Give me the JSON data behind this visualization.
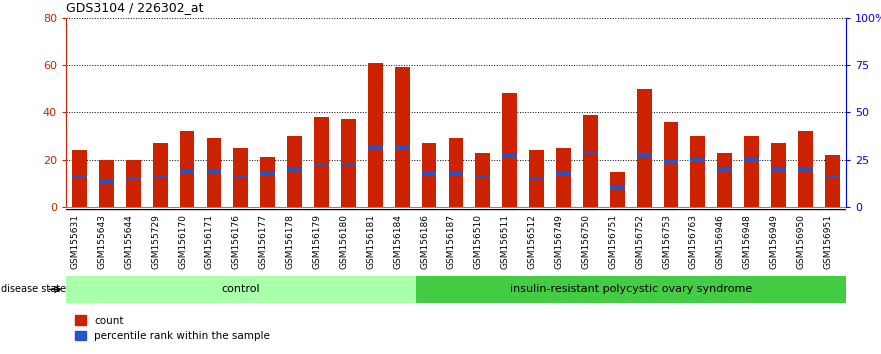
{
  "title": "GDS3104 / 226302_at",
  "samples": [
    "GSM155631",
    "GSM155643",
    "GSM155644",
    "GSM155729",
    "GSM156170",
    "GSM156171",
    "GSM156176",
    "GSM156177",
    "GSM156178",
    "GSM156179",
    "GSM156180",
    "GSM156181",
    "GSM156184",
    "GSM156186",
    "GSM156187",
    "GSM156510",
    "GSM156511",
    "GSM156512",
    "GSM156749",
    "GSM156750",
    "GSM156751",
    "GSM156752",
    "GSM156753",
    "GSM156763",
    "GSM156946",
    "GSM156948",
    "GSM156949",
    "GSM156950",
    "GSM156951"
  ],
  "count_values": [
    24,
    20,
    20,
    27,
    32,
    29,
    25,
    21,
    30,
    38,
    37,
    61,
    59,
    27,
    29,
    23,
    48,
    24,
    25,
    39,
    15,
    50,
    36,
    30,
    23,
    30,
    27,
    32,
    22
  ],
  "percentile_values": [
    13,
    11,
    12,
    13,
    15,
    15,
    13,
    14,
    16,
    18,
    18,
    25,
    25,
    14,
    14,
    13,
    22,
    12,
    14,
    23,
    8,
    22,
    19,
    20,
    16,
    20,
    16,
    16,
    13
  ],
  "n_control": 13,
  "n_disease": 16,
  "bar_color": "#cc2200",
  "percentile_color": "#2255cc",
  "control_bg": "#aaffaa",
  "disease_bg": "#44cc44",
  "control_label": "control",
  "disease_label": "insulin-resistant polycystic ovary syndrome",
  "ylim_left": [
    0,
    80
  ],
  "ylim_right": [
    0,
    100
  ],
  "yticks_left": [
    0,
    20,
    40,
    60,
    80
  ],
  "ytick_labels_left": [
    "0",
    "20",
    "40",
    "60",
    "80"
  ],
  "yticks_right_pct": [
    0,
    25,
    50,
    75,
    100
  ],
  "ytick_labels_right": [
    "0",
    "25",
    "50",
    "75",
    "100%"
  ]
}
